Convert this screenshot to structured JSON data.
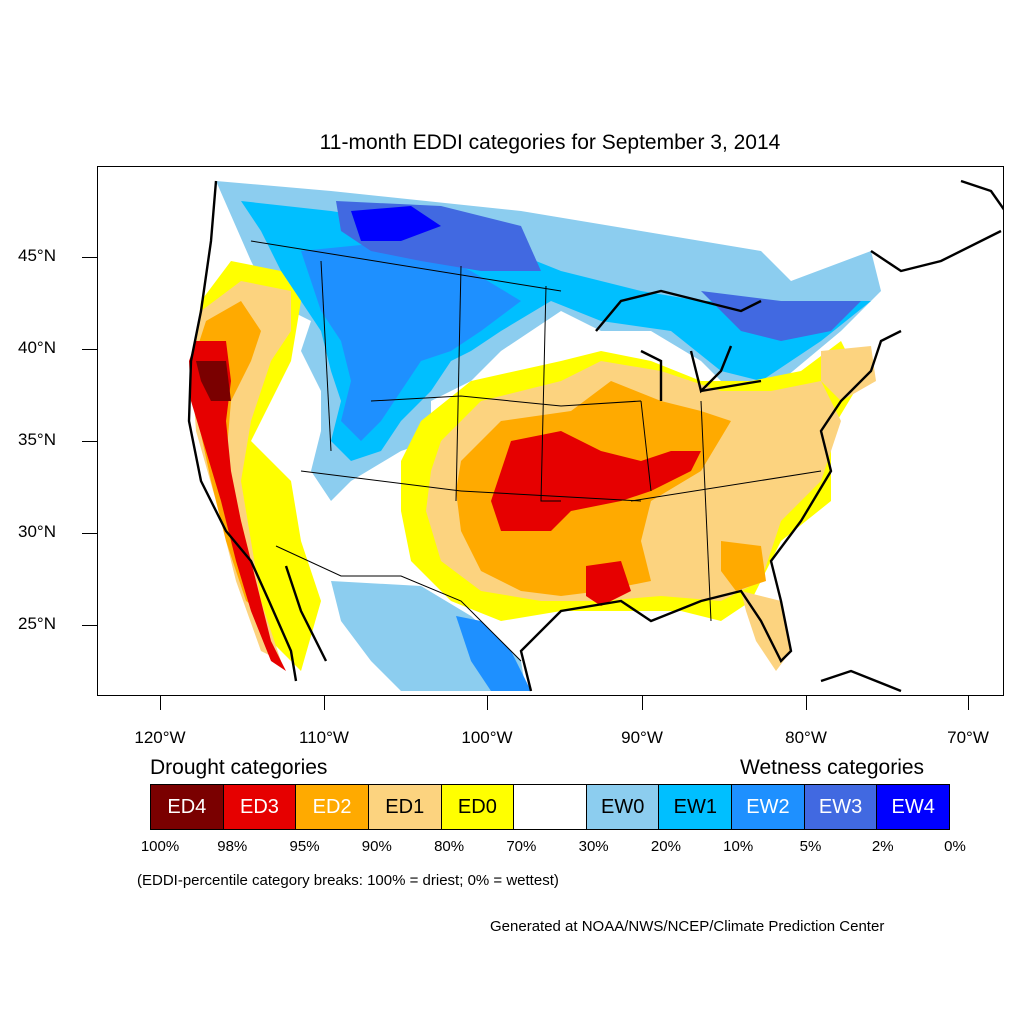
{
  "title": "11-month EDDI categories for September 3, 2014",
  "y_axis_labels": [
    "45°N",
    "40°N",
    "35°N",
    "30°N",
    "25°N"
  ],
  "x_axis_labels": [
    "120°W",
    "110°W",
    "100°W",
    "90°W",
    "80°W",
    "70°W"
  ],
  "legend": {
    "drought_title": "Drought categories",
    "wetness_title": "Wetness categories",
    "categories": [
      {
        "label": "ED4",
        "color": "#7a0000",
        "text_color": "#ffffff"
      },
      {
        "label": "ED3",
        "color": "#e60000",
        "text_color": "#ffffff"
      },
      {
        "label": "ED2",
        "color": "#ffaa00",
        "text_color": "#ffffff"
      },
      {
        "label": "ED1",
        "color": "#fcd37f",
        "text_color": "#000000"
      },
      {
        "label": "ED0",
        "color": "#ffff00",
        "text_color": "#000000"
      },
      {
        "label": "",
        "color": "#ffffff",
        "text_color": "#000000"
      },
      {
        "label": "EW0",
        "color": "#8ccdef",
        "text_color": "#000000"
      },
      {
        "label": "EW1",
        "color": "#00bfff",
        "text_color": "#000000"
      },
      {
        "label": "EW2",
        "color": "#1e90ff",
        "text_color": "#ffffff"
      },
      {
        "label": "EW3",
        "color": "#4169e1",
        "text_color": "#ffffff"
      },
      {
        "label": "EW4",
        "color": "#0000ff",
        "text_color": "#ffffff"
      }
    ],
    "breaks": [
      "100%",
      "98%",
      "95%",
      "90%",
      "80%",
      "70%",
      "30%",
      "20%",
      "10%",
      "5%",
      "2%",
      "0%"
    ]
  },
  "note": "(EDDI-percentile category breaks: 100% = driest; 0% = wettest)",
  "credit": "Generated at NOAA/NWS/NCEP/Climate Prediction Center"
}
